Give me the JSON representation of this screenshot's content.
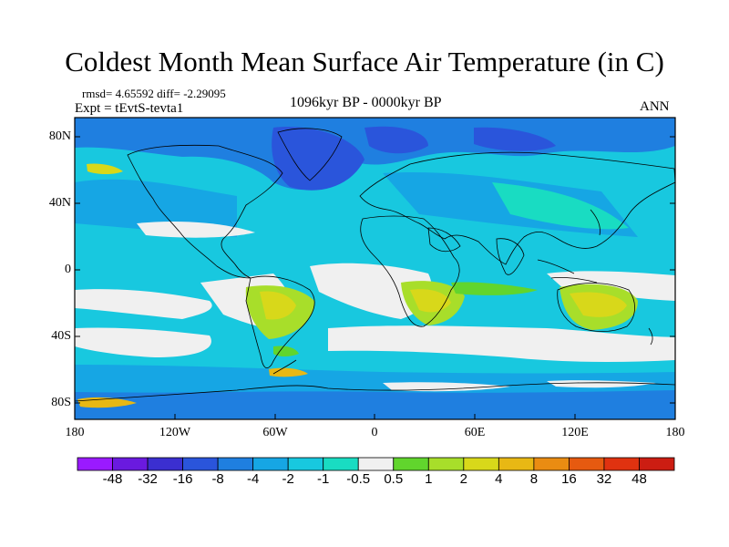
{
  "title": "Coldest Month Mean Surface Air Temperature (in C)",
  "stats_line": "rmsd= 4.65592 diff= -2.29095",
  "experiment": "Expt = tEvtS-tevta1",
  "period": "1096kyr BP - 0000kyr BP",
  "season": "ANN",
  "map": {
    "lat_ticks": [
      "80N",
      "40N",
      "0",
      "40S",
      "80S"
    ],
    "lon_ticks": [
      "180",
      "120W",
      "60W",
      "0",
      "60E",
      "120E",
      "180"
    ]
  },
  "colorbar": {
    "labels": [
      "-48",
      "-32",
      "-16",
      "-8",
      "-4",
      "-2",
      "-1",
      "-0.5",
      "0.5",
      "1",
      "2",
      "4",
      "8",
      "16",
      "32",
      "48"
    ],
    "colors": [
      "#9a1aff",
      "#6a1adf",
      "#3b2fd0",
      "#2a55db",
      "#1f7fe0",
      "#16a6e4",
      "#18c8df",
      "#19dcc2",
      "#f0f0f0",
      "#61d52d",
      "#a8de2a",
      "#d8d81a",
      "#e8b814",
      "#ea8c12",
      "#e65a10",
      "#e03210",
      "#cc1d12"
    ]
  }
}
